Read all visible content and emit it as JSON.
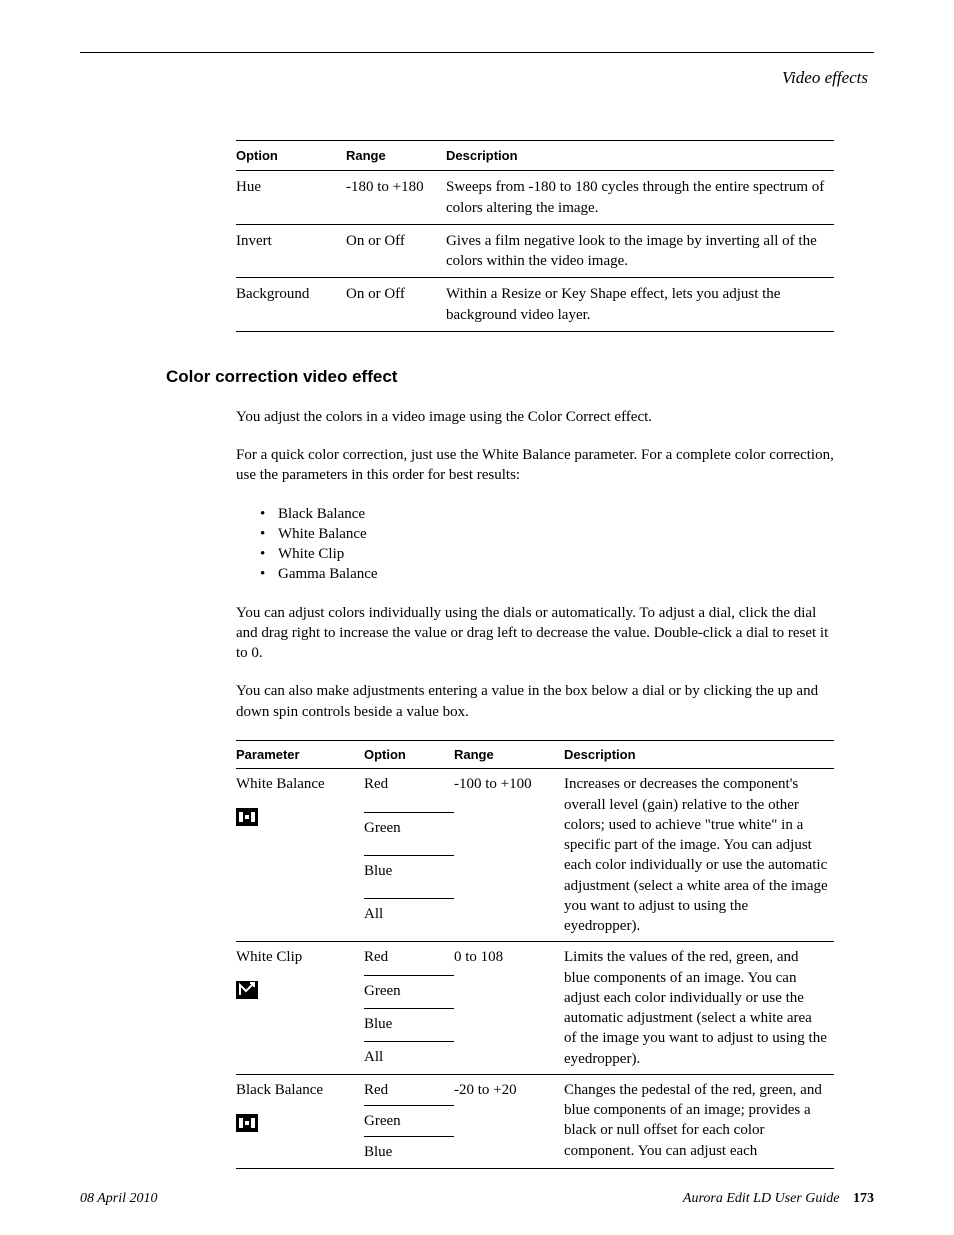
{
  "running_head": "Video effects",
  "table1": {
    "headers": {
      "option": "Option",
      "range": "Range",
      "description": "Description"
    },
    "rows": [
      {
        "option": "Hue",
        "range": "-180 to +180",
        "description": "Sweeps from -180 to 180 cycles through the entire spectrum of colors altering the image."
      },
      {
        "option": "Invert",
        "range": "On or Off",
        "description": "Gives a film negative look to the image by inverting all of the colors within the video image."
      },
      {
        "option": "Background",
        "range": "On or Off",
        "description": "Within a Resize or Key Shape effect, lets you adjust the background video layer."
      }
    ]
  },
  "section": {
    "heading": "Color correction video effect",
    "p1": "You adjust the colors in a video image using the Color Correct effect.",
    "p2": "For a quick color correction, just use the White Balance parameter. For a complete color correction, use the parameters in this order for best results:",
    "bullets": [
      "Black Balance",
      "White Balance",
      "White Clip",
      "Gamma Balance"
    ],
    "p3": "You can adjust colors individually using the dials or automatically. To adjust a dial, click the dial and drag right to increase the value or drag left to decrease the value. Double-click a dial to reset it to 0.",
    "p4": "You can also make adjustments entering a value in the box below a dial or by clicking the up and down spin controls beside a value box."
  },
  "table2": {
    "headers": {
      "parameter": "Parameter",
      "option": "Option",
      "range": "Range",
      "description": "Description"
    },
    "groups": [
      {
        "parameter": "White Balance",
        "icon": "balance",
        "range": "-100 to +100",
        "options": [
          "Red",
          "Green",
          "Blue",
          "All"
        ],
        "description": "Increases or decreases the component's overall level (gain) relative to the other colors; used to achieve \"true white\" in a specific part of the image. You can adjust each color individually or use the automatic adjustment (select a white area of the image you want to adjust to using the eyedropper)."
      },
      {
        "parameter": "White Clip",
        "icon": "clip",
        "range": "0 to 108",
        "options": [
          "Red",
          "Green",
          "Blue",
          "All"
        ],
        "description": "Limits the values of the red, green, and blue components of an image. You can adjust each color individually or use the automatic adjustment (select a white area of the image you want to adjust to using the eyedropper)."
      },
      {
        "parameter": "Black Balance",
        "icon": "balance",
        "range": "-20 to +20",
        "options": [
          "Red",
          "Green",
          "Blue"
        ],
        "description": "Changes the pedestal of the red, green, and blue components of an image; provides a black or null offset for each color component. You can adjust each"
      }
    ]
  },
  "footer": {
    "date": "08 April 2010",
    "doc": "Aurora Edit LD User Guide",
    "page": "173"
  },
  "colors": {
    "text": "#000000",
    "background": "#ffffff",
    "rule": "#000000"
  },
  "typography": {
    "body_family": "Times New Roman",
    "heading_family": "Arial",
    "body_size_pt": 11,
    "heading_size_pt": 13,
    "table_header_size_pt": 10
  }
}
